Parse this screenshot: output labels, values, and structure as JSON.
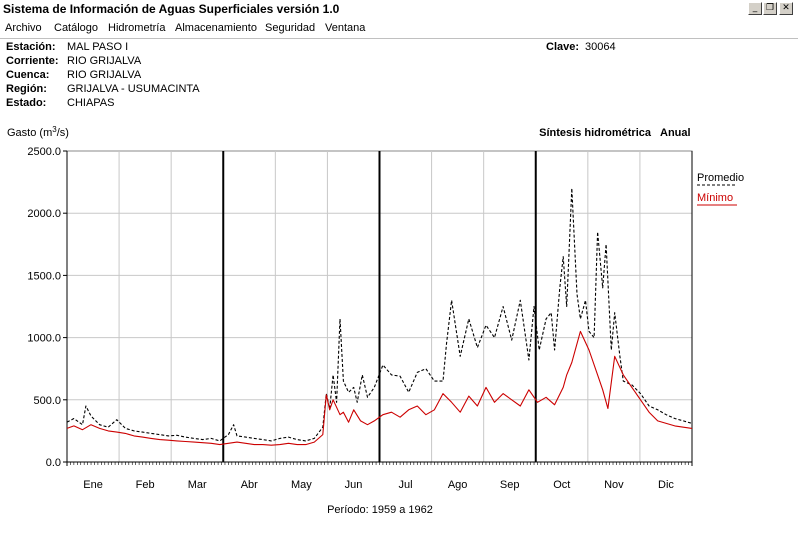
{
  "window": {
    "title": "Sistema de Información de Aguas Superficiales  versión 1.0",
    "buttons": {
      "minimize": "_",
      "restore": "❐",
      "close": "✕"
    }
  },
  "menu": [
    "Archivo",
    "Catálogo",
    "Hidrometría",
    "Almacenamiento",
    "Seguridad",
    "Ventana"
  ],
  "station": {
    "estacion_label": "Estación:",
    "estacion": "MAL PASO I",
    "corriente_label": "Corriente:",
    "corriente": "RIO GRIJALVA",
    "cuenca_label": "Cuenca:",
    "cuenca": "RIO GRIJALVA",
    "region_label": "Región:",
    "region": "GRIJALVA - USUMACINTA",
    "estado_label": "Estado:",
    "estado": "CHIAPAS",
    "clave_label": "Clave:",
    "clave": "30064"
  },
  "chart_data": {
    "type": "line",
    "ylabel_main": "Gasto (m",
    "ylabel_sup": "3",
    "ylabel_end": "/s)",
    "title_left": "Síntesis hidrométrica",
    "title_right": "Anual",
    "ylim": [
      0,
      2500
    ],
    "yticks": [
      "0.0",
      "500.0",
      "1000.0",
      "1500.0",
      "2000.0",
      "2500.0"
    ],
    "months": [
      "Ene",
      "Feb",
      "Mar",
      "Abr",
      "May",
      "Jun",
      "Jul",
      "Ago",
      "Sep",
      "Oct",
      "Nov",
      "Dic"
    ],
    "legend": [
      "Promedio",
      "Mínimo"
    ],
    "period": "Período:  1959 a 1962",
    "grid": true,
    "colors": {
      "promedio": "#000000",
      "minimo": "#cc0000"
    },
    "x_unit": "day of year",
    "series": [
      {
        "name": "Promedio",
        "x": [
          1,
          5,
          10,
          12,
          15,
          20,
          25,
          30,
          35,
          40,
          45,
          50,
          55,
          60,
          65,
          70,
          75,
          80,
          85,
          90,
          95,
          98,
          100,
          105,
          110,
          115,
          120,
          125,
          130,
          135,
          140,
          145,
          150,
          152,
          154,
          156,
          158,
          160,
          162,
          165,
          168,
          170,
          173,
          176,
          180,
          185,
          190,
          195,
          200,
          205,
          210,
          215,
          220,
          222,
          225,
          230,
          235,
          240,
          245,
          250,
          255,
          260,
          265,
          270,
          273,
          276,
          280,
          283,
          285,
          288,
          290,
          292,
          295,
          298,
          300,
          303,
          305,
          308,
          310,
          313,
          315,
          318,
          320,
          323,
          325,
          330,
          335,
          340,
          345,
          350,
          355,
          360,
          365
        ],
        "values": [
          320,
          350,
          300,
          450,
          370,
          300,
          280,
          340,
          270,
          250,
          240,
          230,
          220,
          210,
          215,
          200,
          190,
          180,
          190,
          170,
          220,
          300,
          210,
          200,
          190,
          180,
          170,
          190,
          200,
          180,
          170,
          190,
          280,
          550,
          430,
          700,
          480,
          1150,
          650,
          560,
          600,
          480,
          700,
          520,
          600,
          780,
          700,
          690,
          560,
          720,
          750,
          650,
          650,
          950,
          1300,
          850,
          1150,
          920,
          1100,
          1000,
          1250,
          980,
          1300,
          820,
          1250,
          900,
          1150,
          1200,
          900,
          1400,
          1650,
          1250,
          2200,
          1350,
          1150,
          1300,
          1050,
          1000,
          1850,
          1400,
          1750,
          900,
          1200,
          850,
          650,
          620,
          550,
          450,
          420,
          380,
          350,
          330,
          310
        ]
      },
      {
        "name": "Mínimo",
        "x": [
          1,
          5,
          10,
          15,
          20,
          25,
          30,
          35,
          40,
          45,
          50,
          55,
          60,
          65,
          70,
          75,
          80,
          85,
          90,
          95,
          100,
          105,
          110,
          115,
          120,
          125,
          130,
          135,
          140,
          145,
          150,
          152,
          154,
          156,
          158,
          160,
          162,
          165,
          168,
          172,
          176,
          180,
          185,
          190,
          195,
          200,
          205,
          210,
          215,
          220,
          225,
          230,
          235,
          240,
          245,
          250,
          255,
          260,
          265,
          270,
          275,
          280,
          285,
          290,
          292,
          295,
          300,
          305,
          310,
          313,
          316,
          320,
          325,
          330,
          335,
          340,
          345,
          350,
          355,
          360,
          365
        ],
        "values": [
          270,
          290,
          260,
          300,
          270,
          250,
          240,
          230,
          210,
          200,
          190,
          180,
          175,
          170,
          165,
          160,
          155,
          150,
          140,
          150,
          160,
          150,
          140,
          140,
          135,
          140,
          150,
          140,
          140,
          160,
          220,
          540,
          420,
          500,
          440,
          380,
          400,
          320,
          420,
          330,
          300,
          330,
          380,
          400,
          360,
          420,
          450,
          380,
          420,
          550,
          480,
          400,
          530,
          450,
          600,
          480,
          550,
          500,
          450,
          580,
          480,
          520,
          460,
          600,
          700,
          800,
          1050,
          900,
          700,
          580,
          430,
          850,
          700,
          600,
          500,
          400,
          330,
          310,
          290,
          280,
          270
        ]
      }
    ]
  }
}
